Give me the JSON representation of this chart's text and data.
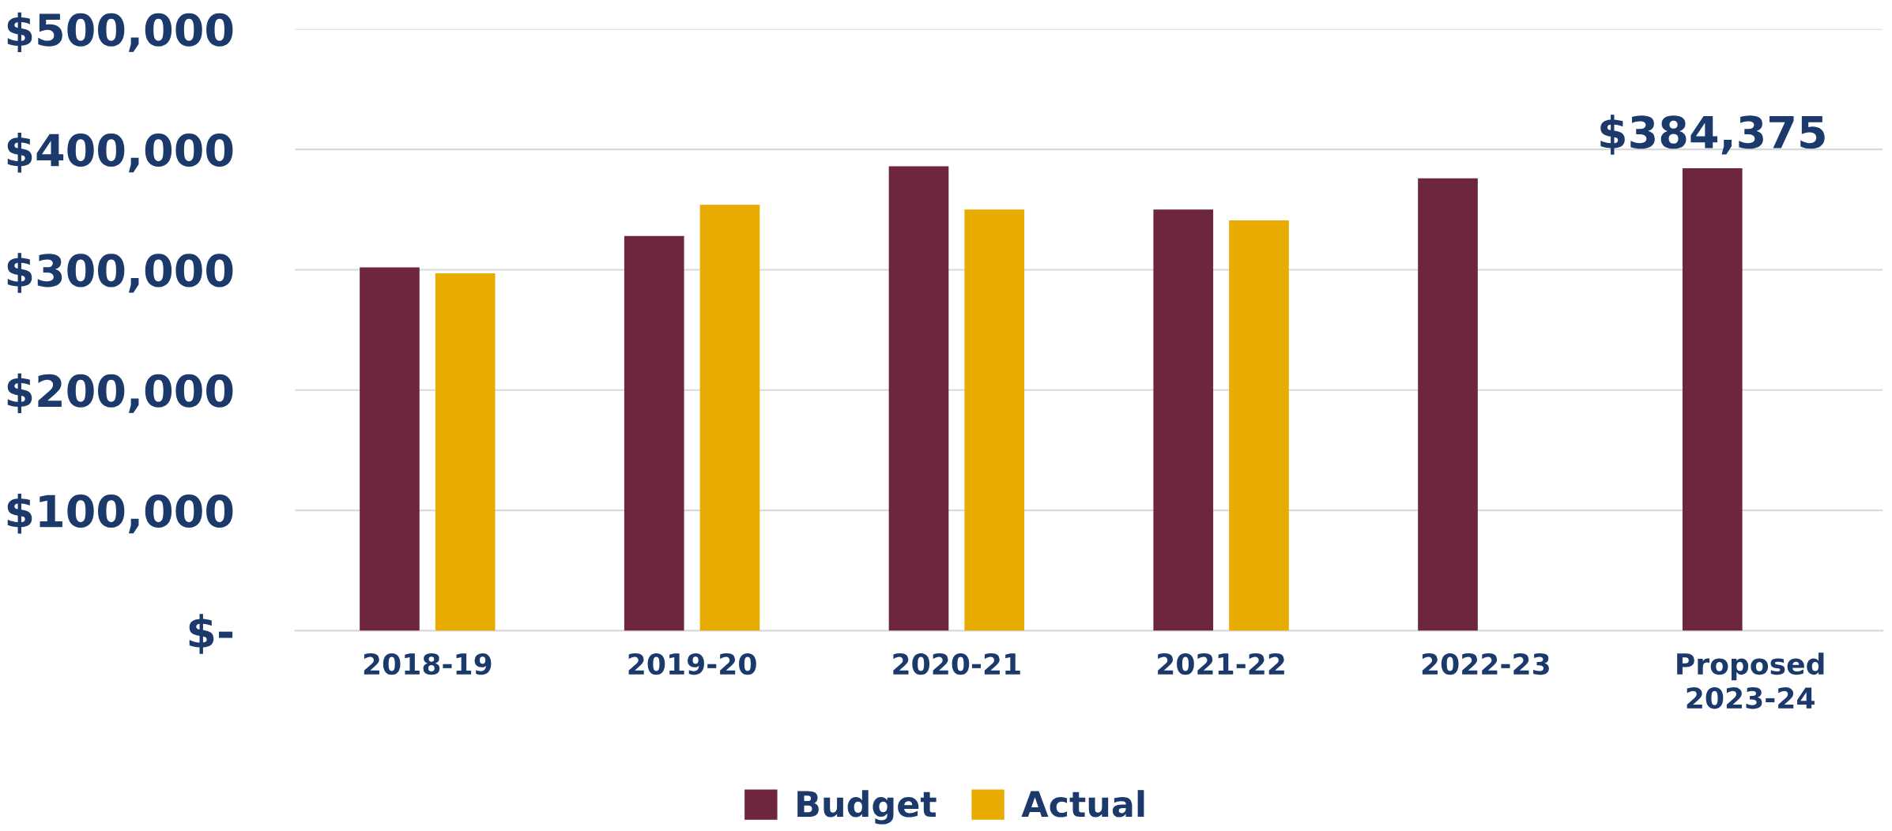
{
  "chart_data": {
    "type": "bar",
    "categories": [
      "2018-19",
      "2019-20",
      "2020-21",
      "2021-22",
      "2022-23",
      "Proposed\n2023-24"
    ],
    "series": [
      {
        "name": "Budget",
        "color": "#6e263d",
        "values": [
          302000,
          328000,
          386000,
          350000,
          376000,
          384375
        ],
        "value_labels": [
          null,
          null,
          null,
          null,
          null,
          "$384,375"
        ]
      },
      {
        "name": "Actual",
        "color": "#e8ac00",
        "values": [
          297000,
          354000,
          350000,
          341000,
          null,
          null
        ]
      }
    ],
    "ylim": [
      0,
      500000
    ],
    "yticks": [
      {
        "value": 0,
        "label": "$-"
      },
      {
        "value": 100000,
        "label": "$100,000"
      },
      {
        "value": 200000,
        "label": "$200,000"
      },
      {
        "value": 300000,
        "label": "$300,000"
      },
      {
        "value": 400000,
        "label": "$400,000"
      },
      {
        "value": 500000,
        "label": "$500,000"
      }
    ],
    "grid": "y",
    "legend": "bottom"
  }
}
